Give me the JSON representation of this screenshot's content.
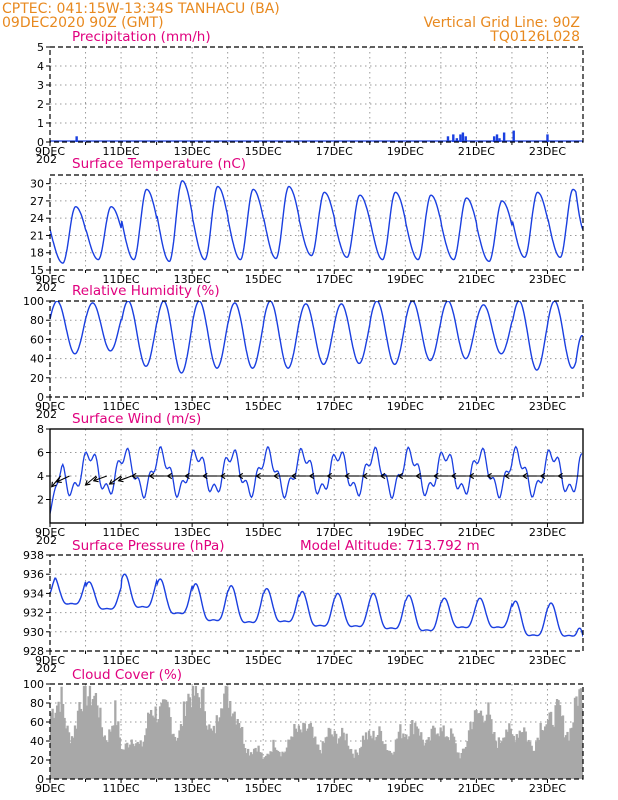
{
  "header": {
    "line1": "CPTEC:   041:15W-13:34S   TANHACU (BA)",
    "line2": "09DEC2020 90Z (GMT)",
    "grid_note": "Vertical Grid Line: 90Z",
    "code": "TQ0126L028"
  },
  "colors": {
    "header": "#e8891f",
    "title": "#e0007e",
    "line": "#1a3fe0",
    "wind": "#000000",
    "cloud": "#a8a8a8"
  },
  "x_axis": {
    "tick_labels": [
      "9DEC",
      "11DEC",
      "13DEC",
      "15DEC",
      "17DEC",
      "19DEC",
      "21DEC",
      "23DEC"
    ],
    "start_day": 9,
    "end_day": 24,
    "cutoff_text": "202"
  },
  "chart_data": [
    {
      "type": "bar",
      "title": "Precipitation (mm/h)",
      "ylim": [
        0,
        5
      ],
      "yticks": [
        0,
        1,
        2,
        3,
        4,
        5
      ],
      "grid": true,
      "series": [
        {
          "x": [
            9.75,
            20.2,
            20.35,
            20.45,
            20.55,
            20.62,
            20.7,
            21.5,
            21.58,
            21.65,
            21.78,
            22.05,
            23.0
          ],
          "values": [
            0.3,
            0.3,
            0.4,
            0.2,
            0.4,
            0.5,
            0.3,
            0.3,
            0.4,
            0.2,
            0.5,
            0.6,
            0.4
          ]
        }
      ]
    },
    {
      "type": "line",
      "title": "Surface Temperature (nC)",
      "ylim": [
        15,
        31.5
      ],
      "yticks": [
        15,
        18,
        21,
        24,
        27,
        30
      ],
      "grid": true,
      "daily_min": [
        16.2,
        16.8,
        16.8,
        16.5,
        16.8,
        16.8,
        17.0,
        17.5,
        17.2,
        16.8,
        16.8,
        16.8,
        16.5,
        17.2,
        17.2
      ],
      "daily_max": [
        26.0,
        26.0,
        29.0,
        30.5,
        29.5,
        29.0,
        29.5,
        28.5,
        28.0,
        28.5,
        28.0,
        27.5,
        27.0,
        28.5,
        29.0
      ],
      "end_value": 22.0
    },
    {
      "type": "line",
      "title": "Relative Humidity (%)",
      "ylim": [
        0,
        100
      ],
      "yticks": [
        0,
        20,
        40,
        60,
        80,
        100
      ],
      "grid": true,
      "daily_max": [
        100,
        98,
        100,
        100,
        100,
        98,
        100,
        97,
        97,
        100,
        100,
        100,
        96,
        100,
        100
      ],
      "daily_min": [
        45,
        48,
        32,
        25,
        30,
        30,
        30,
        34,
        35,
        34,
        38,
        40,
        45,
        28,
        30
      ],
      "end_value": 63
    },
    {
      "type": "line",
      "title": "Surface Wind (m/s)",
      "ylim": [
        0,
        8
      ],
      "yticks": [
        2,
        4,
        6,
        8
      ],
      "grid": true,
      "speed_mean": 4.3,
      "speed_amplitude": 1.6,
      "start_value": 0.8,
      "end_value": 6.0,
      "arrows": {
        "length": 4.0,
        "direction_deg": 180,
        "first": [
          {
            "x": 9.3,
            "angle_deg": 230
          },
          {
            "x": 9.55,
            "angle_deg": 205
          },
          {
            "x": 10.3,
            "angle_deg": 220
          },
          {
            "x": 10.6,
            "angle_deg": 200
          },
          {
            "x": 11.0,
            "angle_deg": 215
          },
          {
            "x": 11.3,
            "angle_deg": 200
          }
        ]
      }
    },
    {
      "type": "line",
      "title": "Surface Pressure (hPa)",
      "annotation": "Model Altitude: 713.792  m",
      "ylim": [
        928,
        938
      ],
      "yticks": [
        928,
        930,
        932,
        934,
        936,
        938
      ],
      "grid": true,
      "daily_max": [
        935.8,
        935.2,
        936.0,
        935.5,
        935.0,
        934.8,
        934.5,
        934.2,
        934.0,
        934.0,
        933.8,
        933.5,
        933.5,
        933.2,
        933.0
      ],
      "daily_min": [
        932.0,
        931.5,
        931.5,
        930.8,
        930.0,
        929.8,
        930.0,
        929.5,
        929.5,
        929.2,
        929.0,
        929.5,
        929.5,
        928.5,
        928.5
      ],
      "start_value": 934.0,
      "end_value": 929.5
    },
    {
      "type": "area",
      "title": "Cloud Cover (%)",
      "ylim": [
        0,
        100
      ],
      "yticks": [
        0,
        20,
        40,
        60,
        80,
        100
      ],
      "grid": true,
      "anchors": {
        "x": [
          9.0,
          9.3,
          9.7,
          10.0,
          10.4,
          10.8,
          11.0,
          11.3,
          11.7,
          12.0,
          12.5,
          13.0,
          13.4,
          13.7,
          14.0,
          14.2,
          14.5,
          15.0,
          15.3,
          15.6,
          16.0,
          16.5,
          17.0,
          17.5,
          18.0,
          18.5,
          19.0,
          19.5,
          20.0,
          20.5,
          21.0,
          21.5,
          22.0,
          22.5,
          23.0,
          23.5,
          24.0
        ],
        "values": [
          72,
          88,
          80,
          92,
          85,
          75,
          30,
          45,
          80,
          70,
          82,
          92,
          85,
          95,
          88,
          70,
          60,
          20,
          40,
          55,
          50,
          60,
          45,
          50,
          45,
          55,
          50,
          70,
          50,
          45,
          70,
          75,
          45,
          65,
          60,
          88,
          92
        ]
      },
      "daily_dip": 0.45
    }
  ]
}
